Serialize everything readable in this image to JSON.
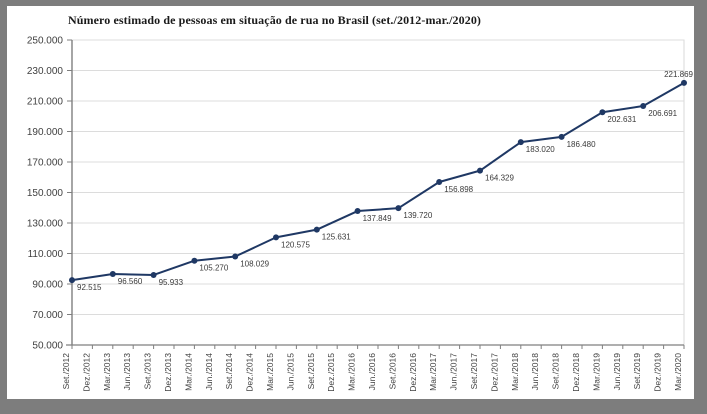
{
  "chart_data": {
    "type": "line",
    "title": "Número estimado de pessoas em situação de rua no Brasil (set./2012-mar./2020)",
    "legend": "none",
    "grid": "horizontal",
    "x_categories": [
      "Set./2012",
      "Dez./2012",
      "Mar./2013",
      "Jun./2013",
      "Set./2013",
      "Dez./2013",
      "Mar./2014",
      "Jun./2014",
      "Set./2014",
      "Dez./2014",
      "Mar./2015",
      "Jun./2015",
      "Set./2015",
      "Dez./2015",
      "Mar./2016",
      "Jun./2016",
      "Set./2016",
      "Dez./2016",
      "Mar./2017",
      "Jun./2017",
      "Set./2017",
      "Dez./2017",
      "Mar./2018",
      "Jun./2018",
      "Set./2018",
      "Dez./2018",
      "Mar./2019",
      "Jun./2019",
      "Set./2019",
      "Dez./2019",
      "Mar./2020"
    ],
    "y_axis": {
      "min": 50000,
      "max": 250000,
      "step": 20000,
      "tick_labels": [
        "50.000",
        "70.000",
        "90.000",
        "110.000",
        "130.000",
        "150.000",
        "170.000",
        "190.000",
        "210.000",
        "230.000",
        "250.000"
      ]
    },
    "series": [
      {
        "name": "Pessoas em situação de rua",
        "points": [
          {
            "category": "Set./2012",
            "category_index": 0,
            "value": 92515,
            "label": "92.515"
          },
          {
            "category": "Mar./2013",
            "category_index": 2,
            "value": 96560,
            "label": "96.560"
          },
          {
            "category": "Set./2013",
            "category_index": 4,
            "value": 95933,
            "label": "95.933"
          },
          {
            "category": "Mar./2014",
            "category_index": 6,
            "value": 105270,
            "label": "105.270"
          },
          {
            "category": "Set./2014",
            "category_index": 8,
            "value": 108029,
            "label": "108.029"
          },
          {
            "category": "Mar./2015",
            "category_index": 10,
            "value": 120575,
            "label": "120.575"
          },
          {
            "category": "Set./2015",
            "category_index": 12,
            "value": 125631,
            "label": "125.631"
          },
          {
            "category": "Mar./2016",
            "category_index": 14,
            "value": 137849,
            "label": "137.849"
          },
          {
            "category": "Set./2016",
            "category_index": 16,
            "value": 139720,
            "label": "139.720"
          },
          {
            "category": "Mar./2017",
            "category_index": 18,
            "value": 156898,
            "label": "156.898"
          },
          {
            "category": "Set./2017",
            "category_index": 20,
            "value": 164329,
            "label": "164.329"
          },
          {
            "category": "Mar./2018",
            "category_index": 22,
            "value": 183020,
            "label": "183.020"
          },
          {
            "category": "Set./2018",
            "category_index": 24,
            "value": 186480,
            "label": "186.480"
          },
          {
            "category": "Mar./2019",
            "category_index": 26,
            "value": 202631,
            "label": "202.631"
          },
          {
            "category": "Set./2019",
            "category_index": 28,
            "value": 206691,
            "label": "206.691"
          },
          {
            "category": "Mar./2020",
            "category_index": 30,
            "value": 221869,
            "label": "221.869"
          }
        ]
      }
    ],
    "colors": {
      "line": "#1f3864",
      "marker": "#1f3864",
      "grid": "#dcdcdc",
      "plot_border": "#d9d9d9",
      "axis": "#7f7f7f",
      "tick_label": "#404040",
      "data_label": "#3a3a3a",
      "title": "#1a1a1a",
      "frame": "#7d7d7d",
      "background": "#ffffff"
    }
  }
}
